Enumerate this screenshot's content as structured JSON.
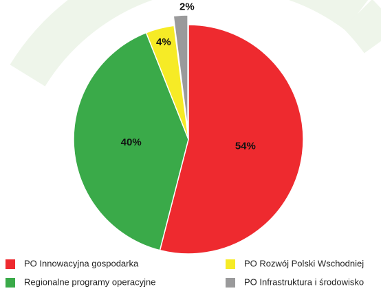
{
  "chart_data": {
    "type": "pie",
    "categories": [
      "PO Innowacyjna gospodarka",
      "Regionalne programy operacyjne",
      "PO Rozwój Polski Wschodniej",
      "PO Infrastruktura i środowisko"
    ],
    "values": [
      54,
      40,
      4,
      2
    ],
    "value_labels": [
      "54%",
      "40%",
      "4%",
      "2%"
    ],
    "colors": [
      "#ee2a2f",
      "#3aaa49",
      "#f6eb26",
      "#9a9a9b"
    ]
  }
}
